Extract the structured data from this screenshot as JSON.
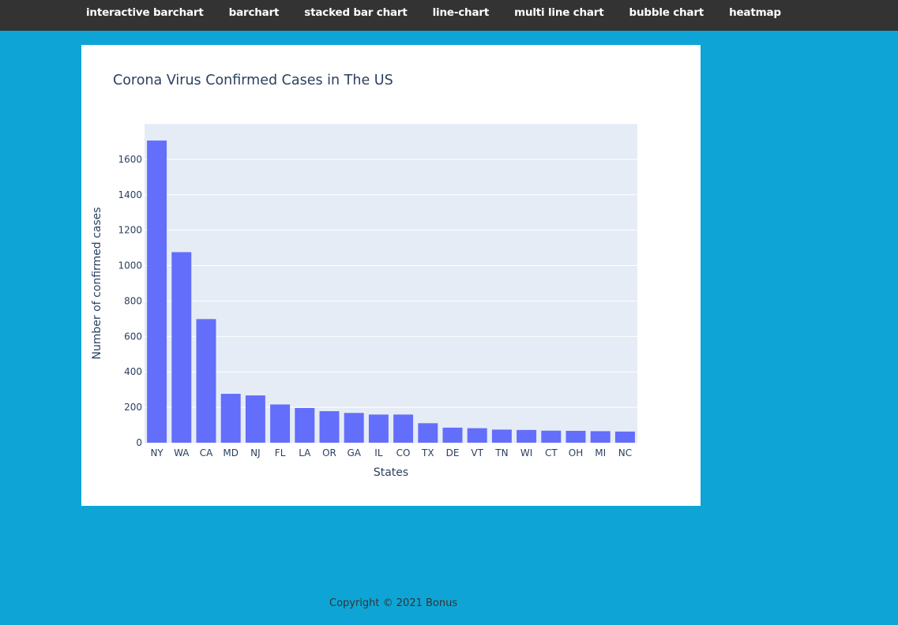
{
  "nav": {
    "items": [
      {
        "label": "interactive barchart"
      },
      {
        "label": "barchart"
      },
      {
        "label": "stacked bar chart"
      },
      {
        "label": "line-chart"
      },
      {
        "label": "multi line chart"
      },
      {
        "label": "bubble chart"
      },
      {
        "label": "heatmap"
      }
    ]
  },
  "footer": {
    "text": "Copyright © 2021 Bonus"
  },
  "chart_data": {
    "type": "bar",
    "title": "Corona Virus Confirmed Cases in The US",
    "xlabel": "States",
    "ylabel": "Number of confirmed cases",
    "categories": [
      "NY",
      "WA",
      "CA",
      "MD",
      "NJ",
      "FL",
      "LA",
      "OR",
      "GA",
      "IL",
      "CO",
      "TX",
      "DE",
      "VT",
      "TN",
      "WI",
      "CT",
      "OH",
      "MI",
      "NC"
    ],
    "values": [
      1706,
      1076,
      698,
      276,
      267,
      216,
      196,
      178,
      168,
      159,
      159,
      110,
      85,
      82,
      74,
      72,
      68,
      67,
      65,
      63
    ],
    "ylim": [
      0,
      1800
    ],
    "yticks": [
      0,
      200,
      400,
      600,
      800,
      1000,
      1200,
      1400,
      1600
    ],
    "grid": true,
    "bar_color": "#636efa",
    "plot_bg": "#e5ecf6",
    "gridline_color": "#ffffff"
  }
}
